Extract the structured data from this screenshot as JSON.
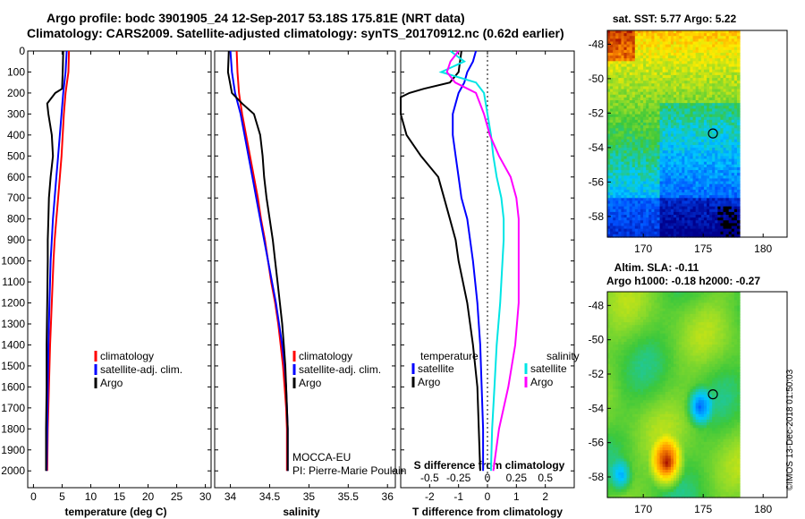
{
  "title_line1": "Argo profile: bodc 3901905_24 12-Sep-2017 53.18S 175.81E (NRT data)",
  "title_line2": "Climatology: CARS2009. Satellite-adjusted climatology: synTS_20170912.nc (0.62d earlier)",
  "credit": "©IMOS 13-Dec-2018 01:50:03",
  "colors": {
    "climatology": "#ff0000",
    "satellite": "#0000ff",
    "argo": "#000000",
    "argo_salinity_diff": "#ff00ff",
    "satellite_salinity_diff": "#00e5e5"
  },
  "chart_data": [
    {
      "id": "temperature",
      "type": "line",
      "xlabel": "temperature (deg C)",
      "ylabel": "",
      "xlim": [
        -1,
        31
      ],
      "ylim": [
        2080,
        0
      ],
      "x_ticks": [
        0,
        5,
        10,
        15,
        20,
        25,
        30
      ],
      "y_ticks": [
        0,
        100,
        200,
        300,
        400,
        500,
        600,
        700,
        800,
        900,
        1000,
        1100,
        1200,
        1300,
        1400,
        1500,
        1600,
        1700,
        1800,
        1900,
        2000
      ],
      "legend": [
        "climatology",
        "satellite-adj. clim.",
        "Argo"
      ],
      "legend_position": "bottom-right",
      "series": [
        {
          "name": "climatology",
          "color": "#ff0000",
          "depth": [
            0,
            100,
            200,
            300,
            400,
            500,
            600,
            700,
            800,
            900,
            1000,
            1200,
            1400,
            1600,
            1800,
            2000
          ],
          "x": [
            6.2,
            6.1,
            5.6,
            5.3,
            5.1,
            4.9,
            4.6,
            4.3,
            4.0,
            3.7,
            3.5,
            3.2,
            2.9,
            2.7,
            2.5,
            2.4
          ]
        },
        {
          "name": "satellite-adj. clim.",
          "color": "#0000ff",
          "depth": [
            0,
            100,
            200,
            300,
            400,
            500,
            600,
            700,
            800,
            900,
            1000,
            1200,
            1400,
            1600,
            1800,
            2000
          ],
          "x": [
            5.8,
            5.6,
            5.2,
            4.9,
            4.6,
            4.3,
            4.0,
            3.7,
            3.4,
            3.2,
            3.0,
            2.8,
            2.6,
            2.5,
            2.4,
            2.3
          ]
        },
        {
          "name": "Argo",
          "color": "#000000",
          "depth": [
            0,
            100,
            180,
            200,
            250,
            300,
            400,
            500,
            600,
            700,
            800,
            900,
            1000,
            1200,
            1400,
            1600,
            1800,
            2000
          ],
          "x": [
            5.2,
            5.1,
            5.0,
            3.8,
            2.4,
            2.6,
            3.2,
            3.4,
            3.0,
            2.7,
            2.6,
            2.5,
            2.5,
            2.4,
            2.3,
            2.3,
            2.2,
            2.2
          ]
        }
      ]
    },
    {
      "id": "salinity",
      "type": "line",
      "xlabel": "salinity",
      "ylabel": "",
      "xlim": [
        33.8,
        36.1
      ],
      "ylim": [
        2080,
        0
      ],
      "x_ticks": [
        34,
        34.5,
        35,
        35.5,
        36
      ],
      "legend": [
        "climatology",
        "satellite-adj. clim.",
        "Argo"
      ],
      "legend_position": "bottom-right",
      "annotations": [
        "MOCCA-EU",
        "PI: Pierre-Marie Poulain"
      ],
      "series": [
        {
          "name": "climatology",
          "color": "#ff0000",
          "depth": [
            0,
            100,
            200,
            300,
            400,
            500,
            600,
            700,
            800,
            900,
            1000,
            1100,
            1200,
            1300,
            1400,
            1500,
            1600,
            1700,
            1800,
            1900,
            2000
          ],
          "x": [
            34.08,
            34.09,
            34.11,
            34.15,
            34.2,
            34.25,
            34.3,
            34.35,
            34.39,
            34.44,
            34.48,
            34.52,
            34.57,
            34.61,
            34.64,
            34.67,
            34.69,
            34.71,
            34.72,
            34.72,
            34.72
          ]
        },
        {
          "name": "satellite-adj. clim.",
          "color": "#0000ff",
          "depth": [
            0,
            100,
            200,
            300,
            400,
            500,
            600,
            700,
            800,
            900,
            1000,
            1100,
            1200,
            1300,
            1400,
            1500,
            1600,
            1700,
            1800,
            1900,
            2000
          ],
          "x": [
            34.0,
            34.02,
            34.06,
            34.13,
            34.18,
            34.23,
            34.28,
            34.33,
            34.38,
            34.43,
            34.48,
            34.53,
            34.58,
            34.62,
            34.66,
            34.69,
            34.71,
            34.72,
            34.73,
            34.73,
            34.73
          ]
        },
        {
          "name": "Argo",
          "color": "#000000",
          "depth": [
            0,
            100,
            200,
            250,
            300,
            400,
            500,
            600,
            700,
            800,
            900,
            1000,
            1100,
            1200,
            1300,
            1400,
            1500,
            1600,
            1700,
            1800,
            1900,
            2000
          ],
          "x": [
            33.98,
            33.97,
            34.02,
            34.15,
            34.3,
            34.38,
            34.41,
            34.43,
            34.46,
            34.5,
            34.54,
            34.57,
            34.6,
            34.63,
            34.66,
            34.68,
            34.7,
            34.71,
            34.72,
            34.73,
            34.73,
            34.73
          ]
        }
      ]
    },
    {
      "id": "difference",
      "type": "line",
      "xlabel": "T difference from climatology",
      "x2label": "S difference from climatology",
      "ylabel": "",
      "xlim": [
        -3,
        3
      ],
      "ylim": [
        2080,
        0
      ],
      "x_ticks": [
        -2,
        -1,
        0,
        1,
        2
      ],
      "x2_ticks": [
        "-0.5",
        "-0.25",
        "0",
        "0.25",
        "0.5"
      ],
      "legend_left_title": "temperature",
      "legend_right_title": "salinity",
      "legend": [
        "satellite",
        "Argo"
      ],
      "legend_position": "bottom",
      "series": [
        {
          "name": "temperature satellite",
          "color": "#0000ff",
          "depth": [
            0,
            50,
            100,
            150,
            200,
            250,
            300,
            400,
            500,
            600,
            700,
            800,
            900,
            1000,
            1200,
            1400,
            1600,
            1800,
            2000
          ],
          "x": [
            -0.4,
            -0.5,
            -0.7,
            -0.8,
            -1.0,
            -1.1,
            -1.2,
            -1.2,
            -1.1,
            -1.0,
            -0.9,
            -0.7,
            -0.6,
            -0.5,
            -0.35,
            -0.25,
            -0.2,
            -0.15,
            -0.15
          ]
        },
        {
          "name": "temperature Argo",
          "color": "#000000",
          "depth": [
            0,
            100,
            150,
            180,
            200,
            220,
            250,
            300,
            400,
            500,
            600,
            700,
            800,
            900,
            1000,
            1200,
            1400,
            1600,
            1800,
            2000
          ],
          "x": [
            -0.9,
            -1.0,
            -1.3,
            -2.2,
            -2.7,
            -3.0,
            -3.0,
            -3.0,
            -2.8,
            -2.3,
            -1.7,
            -1.5,
            -1.3,
            -1.1,
            -1.0,
            -0.7,
            -0.5,
            -0.35,
            -0.3,
            -0.25
          ]
        },
        {
          "name": "salinity satellite",
          "color": "#00e5e5",
          "depth": [
            0,
            50,
            100,
            150,
            200,
            300,
            400,
            500,
            600,
            700,
            800,
            900,
            1000,
            1200,
            1400,
            1600,
            1800,
            2000
          ],
          "x": [
            -0.32,
            -0.2,
            -0.4,
            -0.1,
            -0.03,
            0.0,
            0.03,
            0.05,
            0.08,
            0.12,
            0.14,
            0.14,
            0.13,
            0.11,
            0.08,
            0.06,
            0.04,
            0.03
          ]
        },
        {
          "name": "salinity Argo",
          "color": "#ff00ff",
          "depth": [
            0,
            50,
            100,
            150,
            200,
            300,
            400,
            500,
            600,
            700,
            800,
            900,
            1000,
            1200,
            1400,
            1600,
            1800,
            2000
          ],
          "x": [
            -0.25,
            -0.32,
            -0.35,
            -0.28,
            -0.1,
            -0.03,
            0.02,
            0.1,
            0.2,
            0.25,
            0.27,
            0.27,
            0.27,
            0.27,
            0.24,
            0.18,
            0.1,
            0.05
          ]
        }
      ]
    },
    {
      "id": "sst-map",
      "type": "heatmap",
      "title": "sat. SST: 5.77 Argo: 5.22",
      "x_ticks": [
        "170",
        "175",
        "180"
      ],
      "y_ticks": [
        "-48",
        "-50",
        "-52",
        "-54",
        "-56",
        "-58"
      ],
      "xlim": [
        167,
        182
      ],
      "ylim": [
        -59.2,
        -47.2
      ],
      "marker": {
        "lon": 175.81,
        "lat": -53.18
      }
    },
    {
      "id": "sla-map",
      "type": "heatmap",
      "title_line1": "Altim. SLA: -0.11",
      "title_line2": "Argo h1000: -0.18 h2000: -0.27",
      "x_ticks": [
        "170",
        "175",
        "180"
      ],
      "y_ticks": [
        "-48",
        "-50",
        "-52",
        "-54",
        "-56",
        "-58"
      ],
      "xlim": [
        167,
        182
      ],
      "ylim": [
        -59.2,
        -47.2
      ],
      "marker": {
        "lon": 175.81,
        "lat": -53.18
      }
    }
  ]
}
